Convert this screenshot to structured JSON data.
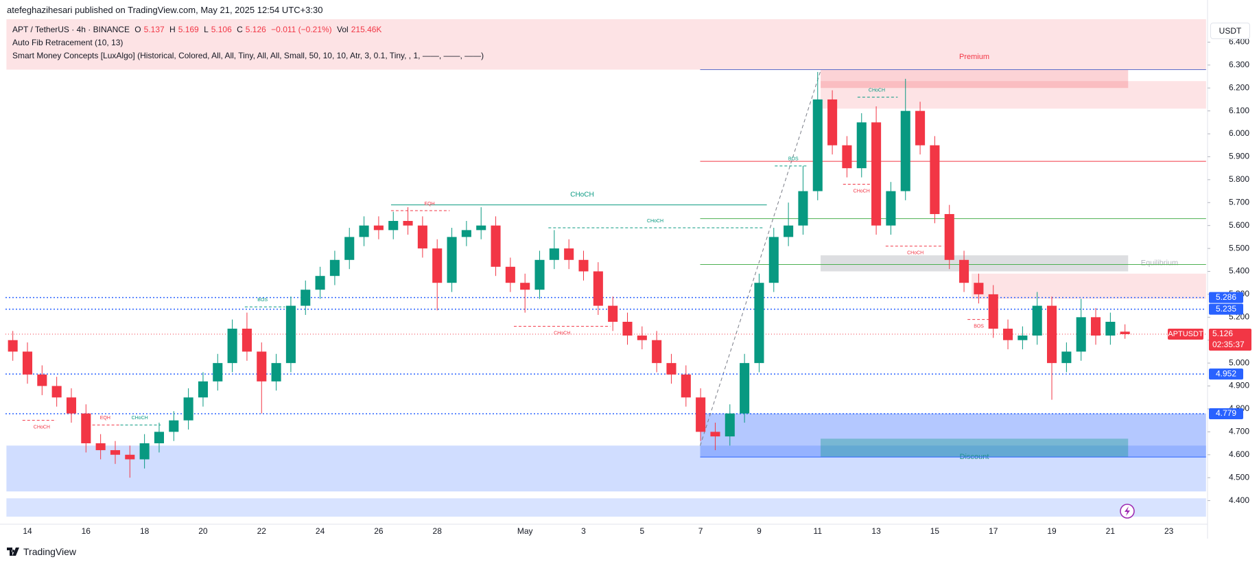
{
  "header": {
    "publisher": "atefeghazihesari published on TradingView.com, May 21, 2025 12:54 UTC+3:30",
    "symbol": "APT / TetherUS · 4h · BINANCE",
    "o_label": "O",
    "h_label": "H",
    "l_label": "L",
    "c_label": "C",
    "change": "−0.011 (−0.21%)",
    "vol_label": "Vol",
    "volume": "215.46K",
    "indicators": [
      "Auto Fib Retracement (10, 13)",
      "Smart Money Concepts [LuxAlgo] (Historical, Colored, All, All, Tiny, All, All, Small, 50, 10, 10, Atr, 3, 0.1, Tiny, , 1, ——, ——, ——)"
    ]
  },
  "currency": "USDT",
  "footer": {
    "brand": "TradingView"
  },
  "chart_data": {
    "type": "candlestick",
    "categories": [
      null,
      "14",
      null,
      null,
      null,
      "16",
      null,
      null,
      null,
      "18",
      null,
      null,
      null,
      "20",
      null,
      null,
      null,
      "22",
      null,
      null,
      null,
      "24",
      null,
      null,
      null,
      "26",
      null,
      null,
      null,
      "28",
      null,
      null,
      null,
      null,
      null,
      "May",
      null,
      null,
      null,
      "3",
      null,
      null,
      null,
      "5",
      null,
      null,
      null,
      "7",
      null,
      null,
      null,
      "9",
      null,
      null,
      null,
      "11",
      null,
      null,
      null,
      "13",
      null,
      null,
      null,
      "15",
      null,
      null,
      null,
      "17",
      null,
      null,
      null,
      "19",
      null,
      null,
      null,
      "21",
      null,
      null,
      null,
      "23",
      null,
      null
    ],
    "open": [
      5.1,
      5.05,
      4.95,
      4.9,
      4.85,
      4.78,
      4.65,
      4.62,
      4.6,
      4.58,
      4.65,
      4.7,
      4.75,
      4.85,
      4.92,
      5.0,
      5.15,
      5.05,
      4.92,
      5.0,
      5.25,
      5.32,
      5.38,
      5.45,
      5.55,
      5.6,
      5.58,
      5.62,
      5.6,
      5.5,
      5.35,
      5.55,
      5.58,
      5.6,
      5.42,
      5.35,
      5.32,
      5.45,
      5.5,
      5.45,
      5.4,
      5.25,
      5.18,
      5.12,
      5.1,
      5.0,
      4.95,
      4.85,
      4.7,
      4.68,
      4.78,
      5.0,
      5.35,
      5.55,
      5.6,
      5.75,
      6.15,
      5.95,
      5.85,
      6.05,
      5.6,
      5.75,
      6.1,
      5.95,
      5.65,
      5.45,
      5.35,
      5.3,
      5.15,
      5.1,
      5.12,
      5.25,
      5.0,
      5.05,
      5.2,
      5.12,
      5.137,
      null,
      null,
      null,
      null,
      null
    ],
    "high": [
      5.14,
      5.09,
      4.99,
      4.94,
      4.89,
      4.82,
      4.69,
      4.66,
      4.64,
      4.69,
      4.74,
      4.79,
      4.89,
      4.96,
      5.04,
      5.19,
      5.22,
      5.09,
      5.04,
      5.29,
      5.36,
      5.42,
      5.49,
      5.59,
      5.64,
      5.64,
      5.66,
      5.68,
      5.64,
      5.54,
      5.59,
      5.62,
      5.68,
      5.64,
      5.46,
      5.39,
      5.49,
      5.58,
      5.54,
      5.49,
      5.44,
      5.29,
      5.22,
      5.16,
      5.14,
      5.04,
      4.99,
      4.89,
      4.74,
      4.82,
      5.04,
      5.39,
      5.59,
      5.7,
      5.86,
      6.27,
      6.19,
      5.99,
      6.09,
      6.12,
      5.79,
      6.24,
      6.14,
      5.99,
      5.69,
      5.49,
      5.39,
      5.34,
      5.19,
      5.16,
      5.31,
      5.29,
      5.09,
      5.28,
      5.24,
      5.22,
      5.169,
      null,
      null,
      null,
      null,
      null
    ],
    "low": [
      5.01,
      4.91,
      4.86,
      4.81,
      4.74,
      4.61,
      4.58,
      4.56,
      4.5,
      4.54,
      4.61,
      4.66,
      4.71,
      4.81,
      4.88,
      4.96,
      5.01,
      4.78,
      4.88,
      4.96,
      5.21,
      5.28,
      5.34,
      5.41,
      5.51,
      5.54,
      5.54,
      5.56,
      5.46,
      5.23,
      5.31,
      5.51,
      5.54,
      5.38,
      5.31,
      5.22,
      5.28,
      5.41,
      5.41,
      5.36,
      5.21,
      5.14,
      5.08,
      5.06,
      4.96,
      4.91,
      4.81,
      4.66,
      4.62,
      4.64,
      4.74,
      4.96,
      5.31,
      5.51,
      5.56,
      5.71,
      5.91,
      5.81,
      5.81,
      5.56,
      5.56,
      5.71,
      5.91,
      5.61,
      5.41,
      5.31,
      5.26,
      5.11,
      5.06,
      5.06,
      5.08,
      4.84,
      4.96,
      5.01,
      5.08,
      5.08,
      5.106,
      null,
      null,
      null,
      null,
      null
    ],
    "close": [
      5.05,
      4.95,
      4.9,
      4.85,
      4.78,
      4.65,
      4.62,
      4.6,
      4.58,
      4.65,
      4.7,
      4.75,
      4.85,
      4.92,
      5.0,
      5.15,
      5.05,
      4.92,
      5.0,
      5.25,
      5.32,
      5.38,
      5.45,
      5.55,
      5.6,
      5.58,
      5.62,
      5.6,
      5.5,
      5.35,
      5.55,
      5.58,
      5.6,
      5.42,
      5.35,
      5.32,
      5.45,
      5.5,
      5.45,
      5.4,
      5.25,
      5.18,
      5.12,
      5.1,
      5.0,
      4.95,
      4.85,
      4.7,
      4.68,
      4.78,
      5.0,
      5.35,
      5.55,
      5.6,
      5.75,
      6.15,
      5.95,
      5.85,
      6.05,
      5.6,
      5.75,
      6.1,
      5.95,
      5.65,
      5.45,
      5.35,
      5.3,
      5.15,
      5.1,
      5.12,
      5.25,
      5.0,
      5.05,
      5.2,
      5.12,
      5.18,
      5.126,
      null,
      null,
      null,
      null,
      null
    ],
    "up_color": "#089981",
    "down_color": "#f23645",
    "ylim": [
      4.3,
      6.5
    ],
    "yticks": [
      {
        "value": 4.4,
        "label": "4.400"
      },
      {
        "value": 4.5,
        "label": "4.500"
      },
      {
        "value": 4.6,
        "label": "4.600"
      },
      {
        "value": 4.7,
        "label": "4.700"
      },
      {
        "value": 4.8,
        "label": "4.800"
      },
      {
        "value": 4.9,
        "label": "4.900"
      },
      {
        "value": 5.0,
        "label": "5.000"
      },
      {
        "value": 5.1,
        "label": "5.100"
      },
      {
        "value": 5.2,
        "label": "5.200"
      },
      {
        "value": 5.3,
        "label": "5.300"
      },
      {
        "value": 5.4,
        "label": "5.400"
      },
      {
        "value": 5.5,
        "label": "5.500"
      },
      {
        "value": 5.6,
        "label": "5.600"
      },
      {
        "value": 5.7,
        "label": "5.700"
      },
      {
        "value": 5.8,
        "label": "5.800"
      },
      {
        "value": 5.9,
        "label": "5.900"
      },
      {
        "value": 6.0,
        "label": "6.000"
      },
      {
        "value": 6.1,
        "label": "6.100"
      },
      {
        "value": 6.2,
        "label": "6.200"
      },
      {
        "value": 6.3,
        "label": "6.300"
      },
      {
        "value": 6.4,
        "label": "6.400"
      }
    ],
    "grid": false,
    "current_price": {
      "label": "APTUSDT",
      "countdown": "02:35:37",
      "color": "#f23645"
    },
    "levels": [
      {
        "value": 5.286,
        "color": "#2962ff"
      },
      {
        "value": 5.235,
        "color": "#2962ff"
      },
      {
        "value": 4.952,
        "color": "#2962ff"
      },
      {
        "value": 4.779,
        "color": "#2962ff"
      }
    ],
    "fib_levels": [
      {
        "value": 6.28,
        "color": "#5b6cc9"
      },
      {
        "value": 5.88,
        "color": "#f23645"
      },
      {
        "value": 5.63,
        "color": "#4caf50"
      },
      {
        "value": 5.43,
        "color": "#4caf50"
      },
      {
        "value": 4.59,
        "color": "#2962ff"
      }
    ],
    "zones": [
      {
        "label": "Premium",
        "ylim": [
          6.28,
          6.5
        ],
        "color": "rgba(242,54,69,0.14)",
        "label_color": "#f23645"
      },
      {
        "label": "Discount",
        "ylim": [
          4.44,
          4.64
        ],
        "color": "rgba(41,98,255,0.22)",
        "label_color": "#1f8f8f"
      },
      {
        "label": "Equilibrium",
        "ylim": [
          5.4,
          5.47
        ],
        "color": "rgba(120,123,134,0.25)",
        "label_color": "#b2b5be"
      },
      {
        "ylim": [
          6.11,
          6.23
        ],
        "color": "rgba(242,54,69,0.14)"
      },
      {
        "ylim": [
          6.2,
          6.28
        ],
        "color": "rgba(242,54,69,0.22)"
      },
      {
        "ylim": [
          5.28,
          5.39
        ],
        "color": "rgba(242,54,69,0.14)"
      },
      {
        "ylim": [
          4.59,
          4.78
        ],
        "color": "rgba(41,98,255,0.35)"
      },
      {
        "ylim": [
          4.59,
          4.67
        ],
        "color": "rgba(8,153,129,0.35)"
      },
      {
        "ylim": [
          4.33,
          4.41
        ],
        "color": "rgba(41,98,255,0.18)"
      }
    ],
    "structure_labels": [
      {
        "text": "CHoCH",
        "price": 5.69,
        "color": "#089981"
      },
      {
        "text": "EQH",
        "price": 5.665,
        "color": "#f23645"
      },
      {
        "text": "CHoCH",
        "price": 5.59,
        "color": "#089981"
      },
      {
        "text": "BOS",
        "price": 5.245,
        "color": "#089981"
      },
      {
        "text": "CHoCH",
        "price": 5.16,
        "color": "#f23645"
      },
      {
        "text": "CHoCH",
        "price": 4.75,
        "color": "#f23645"
      },
      {
        "text": "EQH",
        "price": 4.73,
        "color": "#f23645"
      },
      {
        "text": "CHoCH",
        "price": 4.73,
        "color": "#089981"
      },
      {
        "text": "BOS",
        "price": 5.86,
        "color": "#089981"
      },
      {
        "text": "CHoCH",
        "price": 6.16,
        "color": "#089981"
      },
      {
        "text": "CHoCH",
        "price": 5.78,
        "color": "#f23645"
      },
      {
        "text": "CHoCH",
        "price": 5.51,
        "color": "#f23645"
      },
      {
        "text": "BOS",
        "price": 5.19,
        "color": "#f23645"
      }
    ]
  }
}
